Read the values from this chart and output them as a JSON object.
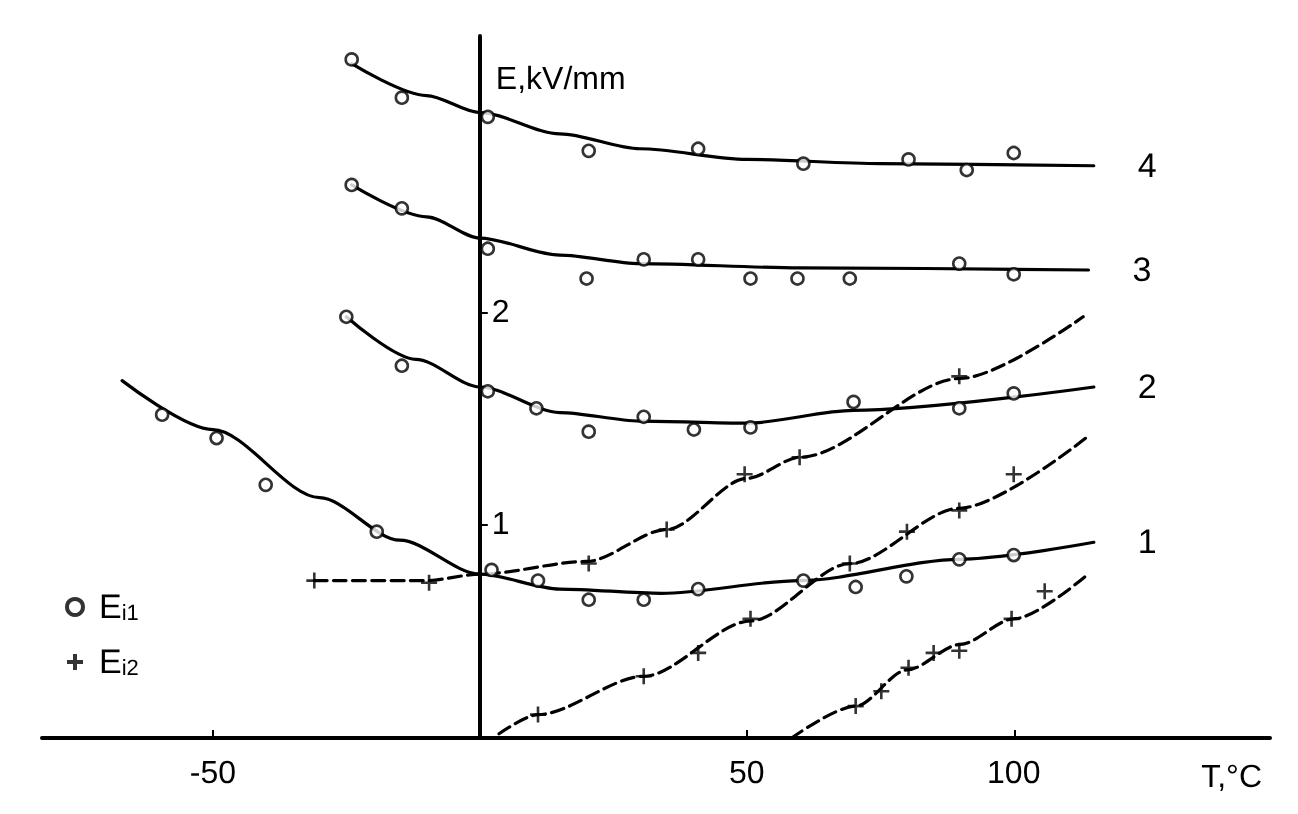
{
  "chart_data": {
    "type": "line",
    "xlabel": "T,°C",
    "ylabel": "E,kV/mm",
    "xlim": [
      -82,
      148
    ],
    "ylim": [
      0,
      3.3
    ],
    "xticks": [
      -50,
      50,
      100
    ],
    "yticks": [
      1,
      2
    ],
    "grid": false,
    "legend": "bottom left",
    "series": [
      {
        "name": "4",
        "type": "line",
        "marker": "none",
        "line_style": "solid",
        "color": "#000000",
        "x": [
          -24,
          -10,
          0,
          15,
          30,
          50,
          75,
          115
        ],
        "values": [
          3.17,
          3.02,
          2.94,
          2.84,
          2.77,
          2.72,
          2.7,
          2.69
        ]
      },
      {
        "name": "3",
        "type": "line",
        "marker": "none",
        "line_style": "solid",
        "color": "#000000",
        "x": [
          -24,
          -10,
          0,
          15,
          30,
          60,
          114
        ],
        "values": [
          2.6,
          2.45,
          2.35,
          2.27,
          2.23,
          2.21,
          2.2
        ]
      },
      {
        "name": "2",
        "type": "line",
        "marker": "none",
        "line_style": "solid",
        "color": "#000000",
        "x": [
          -25,
          -12,
          0,
          15,
          30,
          50,
          70,
          115
        ],
        "values": [
          1.98,
          1.78,
          1.65,
          1.53,
          1.49,
          1.48,
          1.54,
          1.65
        ]
      },
      {
        "name": "1",
        "type": "line",
        "marker": "none",
        "line_style": "solid",
        "color": "#000000",
        "x": [
          -67,
          -50,
          -30,
          -15,
          0,
          15,
          34,
          60,
          90,
          115
        ],
        "values": [
          1.68,
          1.45,
          1.13,
          0.93,
          0.77,
          0.7,
          0.68,
          0.74,
          0.84,
          0.92
        ]
      },
      {
        "type": "line",
        "marker": "none",
        "line_style": "dashed",
        "color": "#000000",
        "x": [
          -31,
          -10,
          0,
          20,
          35,
          50,
          60,
          90,
          113
        ],
        "values": [
          0.74,
          0.74,
          0.77,
          0.83,
          0.98,
          1.22,
          1.32,
          1.69,
          1.98
        ]
      },
      {
        "type": "line",
        "marker": "none",
        "line_style": "dashed",
        "color": "#000000",
        "x": [
          3.6,
          10.9,
          30.7,
          50.7,
          69.3,
          89.8,
          113.5
        ],
        "values": [
          0.02,
          0.11,
          0.29,
          0.55,
          0.82,
          1.08,
          1.41
        ]
      },
      {
        "type": "line",
        "marker": "none",
        "line_style": "dashed",
        "color": "#000000",
        "x": [
          58.4,
          70.4,
          80,
          90,
          100,
          113.9
        ],
        "values": [
          0,
          0.15,
          0.32,
          0.44,
          0.56,
          0.77
        ]
      },
      {
        "name": "E$_{i1}$",
        "type": "scatter",
        "marker": "circle",
        "color": "#000000",
        "x": [
          -24,
          -14.6,
          1.5,
          20.4,
          40.9,
          60.6,
          80.3,
          91.2,
          100,
          -24,
          -14.6,
          1.5,
          20,
          30.7,
          40.9,
          50.7,
          59.5,
          69.3,
          89.8,
          100,
          -25,
          -14.6,
          1.5,
          10.6,
          20.4,
          30.7,
          40.1,
          50.7,
          70,
          89.8,
          100,
          -59.5,
          -49.3,
          -40.1,
          -19.3,
          2.2,
          10.9,
          20.4,
          30.7,
          40.9,
          60.6,
          70.4,
          79.9,
          89.8,
          100
        ],
        "values": [
          3.19,
          3.01,
          2.92,
          2.76,
          2.77,
          2.7,
          2.72,
          2.67,
          2.75,
          2.6,
          2.49,
          2.3,
          2.16,
          2.25,
          2.25,
          2.16,
          2.16,
          2.16,
          2.23,
          2.18,
          1.98,
          1.75,
          1.63,
          1.55,
          1.44,
          1.51,
          1.45,
          1.46,
          1.58,
          1.55,
          1.62,
          1.52,
          1.41,
          1.19,
          0.97,
          0.79,
          0.74,
          0.65,
          0.65,
          0.7,
          0.74,
          0.71,
          0.76,
          0.84,
          0.86
        ]
      },
      {
        "name": "E$_{i2}$",
        "type": "scatter",
        "marker": "cross",
        "color": "#000000",
        "x": [
          -31,
          -9.5,
          20.4,
          35,
          49.6,
          59.9,
          89.8,
          10.9,
          30.7,
          40.9,
          50.7,
          69.3,
          80,
          89.8,
          100,
          70.4,
          75.2,
          80.3,
          85,
          89.8,
          99.6,
          105.8
        ],
        "values": [
          0.74,
          0.73,
          0.82,
          0.98,
          1.24,
          1.32,
          1.7,
          0.11,
          0.29,
          0.4,
          0.56,
          0.82,
          0.97,
          1.07,
          1.24,
          0.15,
          0.22,
          0.33,
          0.4,
          0.41,
          0.56,
          0.69
        ]
      }
    ]
  }
}
